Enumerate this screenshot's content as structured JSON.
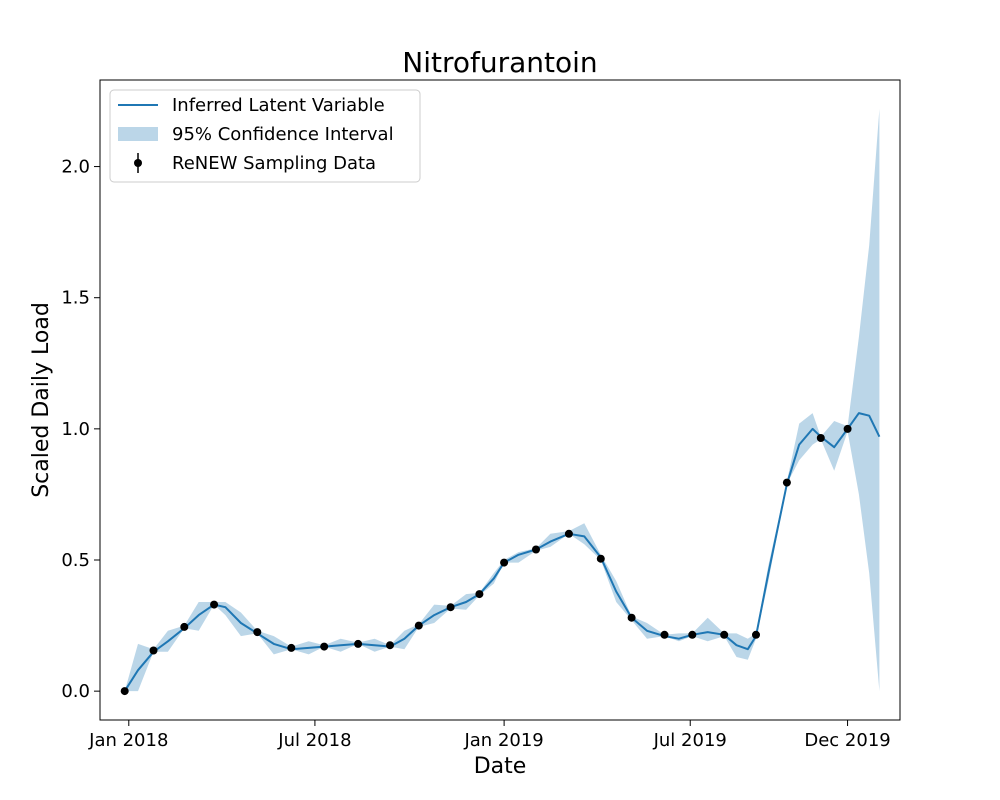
{
  "chart_data": {
    "type": "line",
    "title": "Nitrofurantoin",
    "xlabel": "Date",
    "ylabel": "Scaled Daily Load",
    "xlim": [
      "2017-12-04",
      "2020-01-21"
    ],
    "ylim": [
      -0.11,
      2.33
    ],
    "grid": false,
    "legend_position": "top-left",
    "x_ticks": [
      {
        "date": "2018-01-01",
        "label": "Jan 2018"
      },
      {
        "date": "2018-07-01",
        "label": "Jul 2018"
      },
      {
        "date": "2019-01-01",
        "label": "Jan 2019"
      },
      {
        "date": "2019-07-01",
        "label": "Jul 2019"
      },
      {
        "date": "2019-12-01",
        "label": "Dec 2019"
      }
    ],
    "y_ticks": [
      {
        "value": 0.0,
        "label": "0.0"
      },
      {
        "value": 0.5,
        "label": "0.5"
      },
      {
        "value": 1.0,
        "label": "1.0"
      },
      {
        "value": 1.5,
        "label": "1.5"
      },
      {
        "value": 2.0,
        "label": "2.0"
      }
    ],
    "series": [
      {
        "name": "Inferred Latent Variable",
        "kind": "line",
        "color": "#1f77b4",
        "points": [
          [
            "2017-12-28",
            0.0
          ],
          [
            "2018-01-10",
            0.08
          ],
          [
            "2018-01-25",
            0.15
          ],
          [
            "2018-02-08",
            0.19
          ],
          [
            "2018-02-24",
            0.24
          ],
          [
            "2018-03-10",
            0.29
          ],
          [
            "2018-03-25",
            0.33
          ],
          [
            "2018-04-05",
            0.32
          ],
          [
            "2018-04-20",
            0.26
          ],
          [
            "2018-05-06",
            0.22
          ],
          [
            "2018-05-22",
            0.18
          ],
          [
            "2018-06-08",
            0.16
          ],
          [
            "2018-06-25",
            0.165
          ],
          [
            "2018-07-10",
            0.17
          ],
          [
            "2018-07-26",
            0.175
          ],
          [
            "2018-08-12",
            0.18
          ],
          [
            "2018-08-28",
            0.175
          ],
          [
            "2018-09-12",
            0.17
          ],
          [
            "2018-09-26",
            0.2
          ],
          [
            "2018-10-10",
            0.25
          ],
          [
            "2018-10-25",
            0.29
          ],
          [
            "2018-11-10",
            0.32
          ],
          [
            "2018-11-25",
            0.34
          ],
          [
            "2018-12-08",
            0.37
          ],
          [
            "2018-12-22",
            0.43
          ],
          [
            "2019-01-01",
            0.49
          ],
          [
            "2019-01-15",
            0.52
          ],
          [
            "2019-02-01",
            0.54
          ],
          [
            "2019-02-15",
            0.57
          ],
          [
            "2019-03-05",
            0.6
          ],
          [
            "2019-03-20",
            0.59
          ],
          [
            "2019-04-05",
            0.51
          ],
          [
            "2019-04-20",
            0.38
          ],
          [
            "2019-05-05",
            0.28
          ],
          [
            "2019-05-20",
            0.23
          ],
          [
            "2019-06-06",
            0.21
          ],
          [
            "2019-06-20",
            0.2
          ],
          [
            "2019-07-03",
            0.215
          ],
          [
            "2019-07-18",
            0.225
          ],
          [
            "2019-08-03",
            0.215
          ],
          [
            "2019-08-15",
            0.175
          ],
          [
            "2019-08-26",
            0.16
          ],
          [
            "2019-09-03",
            0.21
          ],
          [
            "2019-09-15",
            0.45
          ],
          [
            "2019-10-03",
            0.79
          ],
          [
            "2019-10-15",
            0.94
          ],
          [
            "2019-10-28",
            1.0
          ],
          [
            "2019-11-05",
            0.97
          ],
          [
            "2019-11-18",
            0.93
          ],
          [
            "2019-12-01",
            1.0
          ],
          [
            "2019-12-12",
            1.06
          ],
          [
            "2019-12-22",
            1.05
          ],
          [
            "2020-01-01",
            0.97
          ]
        ]
      },
      {
        "name": "95% Confidence Interval",
        "kind": "band",
        "color": "#1f77b4",
        "opacity": 0.3,
        "points": [
          [
            "2017-12-28",
            0.0,
            0.0
          ],
          [
            "2018-01-10",
            0.0,
            0.18
          ],
          [
            "2018-01-25",
            0.15,
            0.16
          ],
          [
            "2018-02-08",
            0.15,
            0.23
          ],
          [
            "2018-02-24",
            0.24,
            0.25
          ],
          [
            "2018-03-10",
            0.23,
            0.34
          ],
          [
            "2018-03-25",
            0.33,
            0.34
          ],
          [
            "2018-04-05",
            0.29,
            0.34
          ],
          [
            "2018-04-20",
            0.21,
            0.3
          ],
          [
            "2018-05-06",
            0.22,
            0.23
          ],
          [
            "2018-05-22",
            0.14,
            0.21
          ],
          [
            "2018-06-08",
            0.16,
            0.17
          ],
          [
            "2018-06-25",
            0.14,
            0.19
          ],
          [
            "2018-07-10",
            0.17,
            0.175
          ],
          [
            "2018-07-26",
            0.15,
            0.2
          ],
          [
            "2018-08-12",
            0.18,
            0.185
          ],
          [
            "2018-08-28",
            0.15,
            0.2
          ],
          [
            "2018-09-12",
            0.17,
            0.175
          ],
          [
            "2018-09-26",
            0.16,
            0.23
          ],
          [
            "2018-10-10",
            0.245,
            0.255
          ],
          [
            "2018-10-25",
            0.26,
            0.33
          ],
          [
            "2018-11-10",
            0.315,
            0.325
          ],
          [
            "2018-11-25",
            0.31,
            0.37
          ],
          [
            "2018-12-08",
            0.365,
            0.375
          ],
          [
            "2018-12-22",
            0.41,
            0.45
          ],
          [
            "2019-01-01",
            0.49,
            0.5
          ],
          [
            "2019-01-15",
            0.49,
            0.53
          ],
          [
            "2019-02-01",
            0.535,
            0.545
          ],
          [
            "2019-02-15",
            0.55,
            0.6
          ],
          [
            "2019-03-05",
            0.6,
            0.61
          ],
          [
            "2019-03-20",
            0.56,
            0.64
          ],
          [
            "2019-04-05",
            0.5,
            0.52
          ],
          [
            "2019-04-20",
            0.34,
            0.42
          ],
          [
            "2019-05-05",
            0.27,
            0.285
          ],
          [
            "2019-05-20",
            0.2,
            0.26
          ],
          [
            "2019-06-06",
            0.21,
            0.215
          ],
          [
            "2019-06-20",
            0.19,
            0.22
          ],
          [
            "2019-07-03",
            0.21,
            0.22
          ],
          [
            "2019-07-18",
            0.19,
            0.28
          ],
          [
            "2019-08-03",
            0.21,
            0.22
          ],
          [
            "2019-08-15",
            0.13,
            0.22
          ],
          [
            "2019-08-26",
            0.12,
            0.2
          ],
          [
            "2019-09-03",
            0.2,
            0.22
          ],
          [
            "2019-09-15",
            0.42,
            0.48
          ],
          [
            "2019-10-03",
            0.79,
            0.8
          ],
          [
            "2019-10-15",
            0.88,
            1.02
          ],
          [
            "2019-10-28",
            0.94,
            1.06
          ],
          [
            "2019-11-05",
            0.96,
            0.97
          ],
          [
            "2019-11-18",
            0.84,
            1.03
          ],
          [
            "2019-12-01",
            0.99,
            1.01
          ],
          [
            "2019-12-12",
            0.75,
            1.35
          ],
          [
            "2019-12-22",
            0.45,
            1.7
          ],
          [
            "2020-01-01",
            0.0,
            2.22
          ]
        ]
      },
      {
        "name": "ReNEW Sampling Data",
        "kind": "scatter",
        "color": "#000000",
        "points": [
          [
            "2017-12-28",
            0.0
          ],
          [
            "2018-01-25",
            0.155
          ],
          [
            "2018-02-24",
            0.245
          ],
          [
            "2018-03-25",
            0.33
          ],
          [
            "2018-05-06",
            0.225
          ],
          [
            "2018-06-08",
            0.165
          ],
          [
            "2018-07-10",
            0.17
          ],
          [
            "2018-08-12",
            0.18
          ],
          [
            "2018-09-12",
            0.175
          ],
          [
            "2018-10-10",
            0.25
          ],
          [
            "2018-11-10",
            0.32
          ],
          [
            "2018-12-08",
            0.37
          ],
          [
            "2019-01-01",
            0.49
          ],
          [
            "2019-02-01",
            0.54
          ],
          [
            "2019-03-05",
            0.6
          ],
          [
            "2019-04-05",
            0.505
          ],
          [
            "2019-05-05",
            0.28
          ],
          [
            "2019-06-06",
            0.215
          ],
          [
            "2019-07-03",
            0.215
          ],
          [
            "2019-08-03",
            0.215
          ],
          [
            "2019-09-03",
            0.215
          ],
          [
            "2019-10-03",
            0.795
          ],
          [
            "2019-11-05",
            0.965
          ],
          [
            "2019-12-01",
            1.0
          ]
        ]
      }
    ]
  }
}
